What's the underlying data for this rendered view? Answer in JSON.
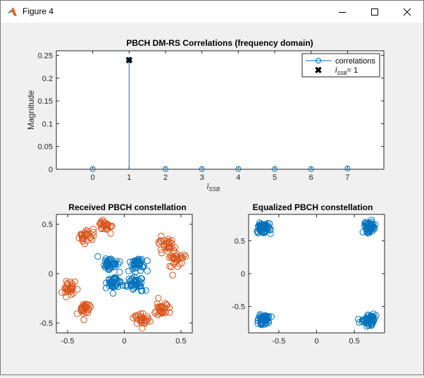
{
  "window": {
    "title": "Figure 4"
  },
  "colors": {
    "blue": "#0072BD",
    "orange": "#D95319",
    "axes_bg": "#ffffff",
    "figure_bg": "#f0f0f0",
    "axis": "#262626"
  },
  "chart_data": [
    {
      "type": "stem",
      "title": "PBCH DM-RS Correlations (frequency domain)",
      "xlabel": "ī_SSB",
      "ylabel": "Magnitude",
      "xlim": [
        -1,
        8
      ],
      "ylim": [
        0,
        0.26
      ],
      "xticks": [
        "0",
        "1",
        "2",
        "3",
        "4",
        "5",
        "6",
        "7"
      ],
      "yticks": [
        "0",
        "0.05",
        "0.1",
        "0.15",
        "0.2",
        "0.25"
      ],
      "series": [
        {
          "name": "correlations",
          "x": [
            0,
            1,
            2,
            3,
            4,
            5,
            6,
            7
          ],
          "y": [
            0.0005,
            0.24,
            0.0005,
            0.0005,
            0.0008,
            0.0005,
            0.0005,
            0.0018
          ]
        },
        {
          "name": "ī_SSB = 1",
          "x": [
            1
          ],
          "y": [
            0.24
          ]
        }
      ],
      "legend": {
        "placement": "top-right",
        "entries": [
          "correlations",
          "ī",
          "SSB",
          "= 1"
        ]
      }
    },
    {
      "type": "scatter",
      "title": "Received PBCH constellation",
      "xlim": [
        -0.6,
        0.6
      ],
      "ylim": [
        -0.6,
        0.6
      ],
      "xticks": [
        "-0.5",
        "0",
        "0.5"
      ],
      "yticks": [
        "-0.5",
        "0",
        "0.5"
      ],
      "series": [
        {
          "clusters": [
            [
              -0.12,
              0.1
            ],
            [
              0.12,
              0.1
            ],
            [
              -0.1,
              -0.1
            ],
            [
              0.1,
              -0.1
            ]
          ],
          "spread": 0.035,
          "count": 40
        },
        {
          "clusters": [
            [
              -0.17,
              0.48
            ],
            [
              -0.35,
              0.38
            ],
            [
              0.37,
              0.3
            ],
            [
              0.47,
              0.15
            ],
            [
              -0.48,
              -0.15
            ],
            [
              -0.35,
              -0.35
            ],
            [
              0.15,
              -0.47
            ],
            [
              0.33,
              -0.37
            ]
          ],
          "spread": 0.035,
          "count": 28
        }
      ]
    },
    {
      "type": "scatter",
      "title": "Equalized PBCH constellation",
      "xlim": [
        -0.9,
        0.9
      ],
      "ylim": [
        -0.9,
        0.9
      ],
      "xticks": [
        "-0.5",
        "0",
        "0.5"
      ],
      "yticks": [
        "-0.5",
        "0",
        "0.5"
      ],
      "series": [
        {
          "clusters": [
            [
              -0.7,
              0.7
            ],
            [
              0.7,
              0.7
            ],
            [
              -0.7,
              -0.7
            ],
            [
              0.7,
              -0.7
            ]
          ],
          "spread": 0.045,
          "count": 55
        }
      ]
    }
  ]
}
